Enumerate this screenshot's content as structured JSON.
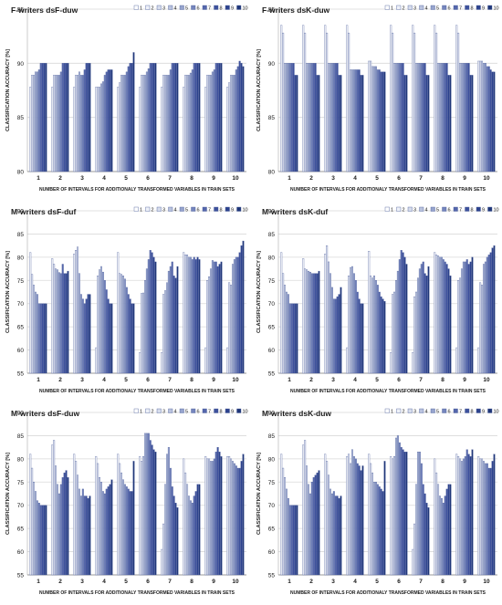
{
  "chart_data": [
    {
      "type": "bar",
      "title": "F-writers dsF-duw",
      "xlabel": "Number of intervals for additionaly transformed variables in train sets",
      "ylabel": "Classification accuracy [%]",
      "ylim": [
        80,
        95
      ],
      "yticks": [
        80,
        85,
        90,
        95
      ],
      "legend": "top-right",
      "grid": true,
      "categories": [
        "1",
        "2",
        "3",
        "4",
        "5",
        "6",
        "7",
        "8",
        "9",
        "10"
      ],
      "series": [
        {
          "name": "1",
          "values": [
            87.8,
            87.8,
            87.8,
            87.8,
            87.8,
            87.8,
            87.8,
            87.8,
            87.8,
            87.8
          ]
        },
        {
          "name": "2",
          "values": [
            88.9,
            88.9,
            88.9,
            87.8,
            88.2,
            88.9,
            88.9,
            88.9,
            88.9,
            88.2
          ]
        },
        {
          "name": "3",
          "values": [
            88.9,
            88.9,
            88.9,
            87.8,
            88.9,
            88.9,
            88.9,
            88.9,
            88.9,
            88.9
          ]
        },
        {
          "name": "4",
          "values": [
            89.2,
            88.9,
            89.2,
            88.1,
            88.9,
            88.9,
            88.9,
            88.9,
            88.9,
            88.9
          ]
        },
        {
          "name": "5",
          "values": [
            89.2,
            88.9,
            88.9,
            88.3,
            88.9,
            89.2,
            88.9,
            89.1,
            89.2,
            88.9
          ]
        },
        {
          "name": "6",
          "values": [
            89.4,
            89.2,
            88.9,
            88.9,
            89.2,
            89.5,
            89.4,
            89.4,
            89.4,
            89.4
          ]
        },
        {
          "name": "7",
          "values": [
            90.0,
            90.0,
            89.4,
            89.2,
            89.7,
            90.0,
            90.0,
            90.0,
            90.0,
            89.7
          ]
        },
        {
          "name": "8",
          "values": [
            90.0,
            90.0,
            90.0,
            89.4,
            90.0,
            90.0,
            90.0,
            90.0,
            90.0,
            90.2
          ]
        },
        {
          "name": "9",
          "values": [
            90.0,
            90.0,
            90.0,
            89.4,
            90.0,
            90.0,
            90.0,
            90.0,
            90.0,
            90.0
          ]
        },
        {
          "name": "10",
          "values": [
            90.0,
            90.0,
            90.0,
            89.4,
            91.0,
            90.0,
            90.0,
            90.0,
            90.0,
            89.7
          ]
        }
      ]
    },
    {
      "type": "bar",
      "title": "F-writers dsK-duw",
      "xlabel": "Number of intervals for additionaly transformed variables in train sets",
      "ylabel": "Classification accuracy [%]",
      "ylim": [
        80,
        95
      ],
      "yticks": [
        80,
        85,
        90,
        95
      ],
      "legend": "top-right",
      "grid": true,
      "categories": [
        "1",
        "2",
        "3",
        "4",
        "5",
        "6",
        "7",
        "8",
        "9",
        "10"
      ],
      "series": [
        {
          "name": "1",
          "values": [
            93.5,
            93.5,
            93.5,
            93.5,
            90.2,
            93.5,
            93.5,
            93.5,
            93.5,
            90.2
          ]
        },
        {
          "name": "2",
          "values": [
            92.8,
            92.8,
            92.8,
            92.8,
            90.2,
            92.8,
            92.8,
            92.8,
            92.8,
            90.2
          ]
        },
        {
          "name": "3",
          "values": [
            90.0,
            90.0,
            90.0,
            89.4,
            89.7,
            90.0,
            90.0,
            90.0,
            90.0,
            90.2
          ]
        },
        {
          "name": "4",
          "values": [
            90.0,
            90.0,
            90.0,
            89.4,
            89.7,
            90.0,
            90.0,
            90.0,
            90.0,
            90.0
          ]
        },
        {
          "name": "5",
          "values": [
            90.0,
            90.0,
            90.0,
            89.4,
            89.7,
            90.0,
            90.0,
            90.0,
            90.0,
            90.0
          ]
        },
        {
          "name": "6",
          "values": [
            90.0,
            90.0,
            90.0,
            89.4,
            89.4,
            90.0,
            90.0,
            90.0,
            90.0,
            89.7
          ]
        },
        {
          "name": "7",
          "values": [
            90.0,
            90.0,
            90.0,
            89.4,
            89.4,
            90.0,
            90.0,
            90.0,
            90.0,
            89.7
          ]
        },
        {
          "name": "8",
          "values": [
            90.0,
            90.0,
            90.0,
            89.4,
            89.2,
            90.0,
            90.0,
            90.0,
            90.0,
            89.4
          ]
        },
        {
          "name": "9",
          "values": [
            88.9,
            88.9,
            88.9,
            88.9,
            89.2,
            88.9,
            88.9,
            88.9,
            88.9,
            89.2
          ]
        },
        {
          "name": "10",
          "values": [
            88.9,
            88.9,
            88.9,
            88.9,
            89.2,
            88.9,
            88.9,
            88.9,
            88.9,
            89.2
          ]
        }
      ]
    },
    {
      "type": "bar",
      "title": "M-writers dsF-duf",
      "xlabel": "Number of intervals for additionaly transformed variables in train sets",
      "ylabel": "Classification accuracy [%]",
      "ylim": [
        55,
        90
      ],
      "yticks": [
        55,
        60,
        65,
        70,
        75,
        80,
        85,
        90
      ],
      "legend": "top-right",
      "grid": true,
      "categories": [
        "1",
        "2",
        "3",
        "4",
        "5",
        "6",
        "7",
        "8",
        "9",
        "10"
      ],
      "series": [
        {
          "name": "1",
          "values": [
            81.0,
            79.7,
            80.7,
            60.5,
            81.0,
            59.5,
            59.5,
            81.0,
            60.5,
            60.5
          ]
        },
        {
          "name": "2",
          "values": [
            76.3,
            78.5,
            81.5,
            76.0,
            76.5,
            72.2,
            72.0,
            80.5,
            75.0,
            74.5
          ]
        },
        {
          "name": "3",
          "values": [
            74.0,
            77.5,
            82.2,
            77.3,
            76.3,
            72.3,
            72.8,
            80.5,
            75.8,
            74.0
          ]
        },
        {
          "name": "4",
          "values": [
            72.5,
            77.3,
            76.5,
            78.0,
            76.0,
            75.0,
            74.5,
            80.0,
            77.5,
            78.5
          ]
        },
        {
          "name": "5",
          "values": [
            72.0,
            76.7,
            72.0,
            76.8,
            75.3,
            77.5,
            77.0,
            80.0,
            79.3,
            79.5
          ]
        },
        {
          "name": "6",
          "values": [
            70.0,
            76.5,
            71.0,
            75.0,
            73.5,
            79.5,
            78.0,
            79.5,
            79.0,
            80.0
          ]
        },
        {
          "name": "7",
          "values": [
            70.0,
            78.5,
            70.0,
            73.0,
            72.0,
            81.5,
            79.0,
            80.0,
            79.0,
            80.0
          ]
        },
        {
          "name": "8",
          "values": [
            70.0,
            76.5,
            71.0,
            71.0,
            71.0,
            81.0,
            76.0,
            79.5,
            78.0,
            81.0
          ]
        },
        {
          "name": "9",
          "values": [
            70.0,
            76.5,
            72.0,
            70.0,
            70.0,
            80.0,
            75.5,
            80.0,
            78.5,
            82.5
          ]
        },
        {
          "name": "10",
          "values": [
            70.0,
            77.0,
            72.0,
            70.0,
            70.0,
            79.0,
            78.0,
            79.5,
            79.0,
            83.5
          ]
        }
      ]
    },
    {
      "type": "bar",
      "title": "M-writers dsK-duf",
      "xlabel": "Number of intervals for additionaly transformed variables in train sets",
      "ylabel": "Classification accuracy [%]",
      "ylim": [
        55,
        90
      ],
      "yticks": [
        55,
        60,
        65,
        70,
        75,
        80,
        85,
        90
      ],
      "legend": "top-right",
      "grid": true,
      "categories": [
        "1",
        "2",
        "3",
        "4",
        "5",
        "6",
        "7",
        "8",
        "9",
        "10"
      ],
      "series": [
        {
          "name": "1",
          "values": [
            81.0,
            79.7,
            80.7,
            60.5,
            81.3,
            59.5,
            59.5,
            81.0,
            60.5,
            60.5
          ]
        },
        {
          "name": "2",
          "values": [
            76.5,
            77.5,
            82.5,
            76.0,
            76.0,
            72.0,
            71.5,
            80.5,
            75.0,
            74.5
          ]
        },
        {
          "name": "3",
          "values": [
            74.0,
            77.3,
            79.0,
            77.8,
            75.5,
            72.5,
            72.5,
            80.3,
            75.5,
            74.0
          ]
        },
        {
          "name": "4",
          "values": [
            72.5,
            77.0,
            76.5,
            78.0,
            76.0,
            75.0,
            75.5,
            80.0,
            77.5,
            78.5
          ]
        },
        {
          "name": "5",
          "values": [
            72.0,
            76.8,
            73.5,
            76.5,
            75.0,
            77.0,
            77.5,
            80.0,
            79.0,
            79.0
          ]
        },
        {
          "name": "6",
          "values": [
            70.0,
            76.5,
            71.0,
            75.0,
            74.0,
            79.5,
            78.5,
            79.5,
            79.0,
            80.0
          ]
        },
        {
          "name": "7",
          "values": [
            70.0,
            76.5,
            71.0,
            72.5,
            72.5,
            81.5,
            79.0,
            79.0,
            79.5,
            80.5
          ]
        },
        {
          "name": "8",
          "values": [
            70.0,
            76.5,
            71.5,
            71.0,
            71.5,
            81.0,
            76.5,
            78.5,
            78.5,
            81.0
          ]
        },
        {
          "name": "9",
          "values": [
            70.0,
            76.5,
            72.0,
            70.0,
            71.0,
            80.0,
            76.0,
            77.5,
            79.0,
            82.0
          ]
        },
        {
          "name": "10",
          "values": [
            70.0,
            77.0,
            73.5,
            70.0,
            70.5,
            78.5,
            78.0,
            76.0,
            80.0,
            82.5
          ]
        }
      ]
    },
    {
      "type": "bar",
      "title": "M-writers dsF-duw",
      "xlabel": "Number of intervals for additionaly transformed variables in train sets",
      "ylabel": "Classification accuracy [%]",
      "ylim": [
        55,
        90
      ],
      "yticks": [
        55,
        60,
        65,
        70,
        75,
        80,
        85,
        90
      ],
      "legend": "top-right",
      "grid": true,
      "categories": [
        "1",
        "2",
        "3",
        "4",
        "5",
        "6",
        "7",
        "8",
        "9",
        "10"
      ],
      "series": [
        {
          "name": "1",
          "values": [
            81.0,
            83.0,
            81.0,
            80.5,
            81.0,
            80.5,
            60.5,
            80.0,
            80.5,
            80.5
          ]
        },
        {
          "name": "2",
          "values": [
            78.0,
            84.0,
            79.5,
            79.0,
            79.0,
            79.5,
            66.0,
            77.0,
            80.0,
            80.5
          ]
        },
        {
          "name": "3",
          "values": [
            75.0,
            78.5,
            76.5,
            76.0,
            77.0,
            80.5,
            74.5,
            74.5,
            80.0,
            80.0
          ]
        },
        {
          "name": "4",
          "values": [
            73.0,
            74.5,
            73.5,
            75.0,
            75.5,
            85.5,
            81.0,
            72.0,
            79.5,
            79.5
          ]
        },
        {
          "name": "5",
          "values": [
            71.0,
            72.5,
            72.0,
            73.0,
            74.5,
            85.5,
            82.5,
            71.0,
            79.5,
            79.0
          ]
        },
        {
          "name": "6",
          "values": [
            70.5,
            74.5,
            73.5,
            72.5,
            74.0,
            85.5,
            78.0,
            70.5,
            80.0,
            78.5
          ]
        },
        {
          "name": "7",
          "values": [
            70.0,
            76.0,
            72.0,
            73.5,
            73.5,
            84.0,
            74.0,
            72.0,
            81.5,
            78.0
          ]
        },
        {
          "name": "8",
          "values": [
            70.0,
            77.0,
            72.0,
            74.0,
            73.0,
            83.0,
            72.0,
            73.0,
            82.5,
            78.0
          ]
        },
        {
          "name": "9",
          "values": [
            70.0,
            77.5,
            71.5,
            74.5,
            73.0,
            82.0,
            70.5,
            74.5,
            81.5,
            79.5
          ]
        },
        {
          "name": "10",
          "values": [
            70.0,
            76.0,
            72.0,
            75.5,
            79.5,
            81.5,
            69.5,
            74.5,
            80.5,
            81.0
          ]
        }
      ]
    },
    {
      "type": "bar",
      "title": "M-writers dsK-duw",
      "xlabel": "Number of intervals for additionaly transformed variables in train sets",
      "ylabel": "Classification accuracy [%]",
      "ylim": [
        55,
        90
      ],
      "yticks": [
        55,
        60,
        65,
        70,
        75,
        80,
        85,
        90
      ],
      "legend": "top-right",
      "grid": true,
      "categories": [
        "1",
        "2",
        "3",
        "4",
        "5",
        "6",
        "7",
        "8",
        "9",
        "10"
      ],
      "series": [
        {
          "name": "1",
          "values": [
            81.0,
            83.0,
            81.0,
            80.5,
            81.0,
            80.5,
            60.5,
            80.0,
            81.0,
            80.5
          ]
        },
        {
          "name": "2",
          "values": [
            78.0,
            84.0,
            79.5,
            81.0,
            79.0,
            80.0,
            66.0,
            77.0,
            80.5,
            80.0
          ]
        },
        {
          "name": "3",
          "values": [
            76.0,
            78.5,
            76.5,
            79.0,
            77.0,
            80.5,
            74.5,
            74.5,
            80.0,
            80.0
          ]
        },
        {
          "name": "4",
          "values": [
            73.5,
            74.5,
            73.5,
            82.0,
            75.0,
            84.5,
            81.5,
            72.0,
            79.5,
            79.5
          ]
        },
        {
          "name": "5",
          "values": [
            71.5,
            72.5,
            72.5,
            80.5,
            75.0,
            85.0,
            81.5,
            71.5,
            80.0,
            79.0
          ]
        },
        {
          "name": "6",
          "values": [
            70.0,
            75.0,
            73.0,
            80.0,
            74.5,
            83.5,
            79.0,
            70.5,
            80.5,
            79.0
          ]
        },
        {
          "name": "7",
          "values": [
            70.0,
            76.0,
            72.0,
            79.0,
            74.0,
            82.5,
            74.5,
            72.0,
            82.0,
            78.0
          ]
        },
        {
          "name": "8",
          "values": [
            70.0,
            76.5,
            72.0,
            78.5,
            73.5,
            82.0,
            72.5,
            73.5,
            81.0,
            78.0
          ]
        },
        {
          "name": "9",
          "values": [
            70.0,
            77.0,
            71.5,
            77.5,
            73.0,
            81.5,
            70.5,
            74.5,
            80.5,
            79.5
          ]
        },
        {
          "name": "10",
          "values": [
            70.0,
            77.5,
            72.0,
            78.5,
            79.5,
            81.5,
            69.5,
            74.5,
            82.0,
            81.0
          ]
        }
      ]
    }
  ],
  "series_colors": [
    "#ffffff",
    "#eef1f8",
    "#d6dcec",
    "#bac3de",
    "#97a4cd",
    "#7585bd",
    "#5567ac",
    "#3d519c",
    "#2c428d",
    "#1f3678"
  ],
  "grid_color": "#d9d9d9",
  "text_color": "#1a1a1a"
}
